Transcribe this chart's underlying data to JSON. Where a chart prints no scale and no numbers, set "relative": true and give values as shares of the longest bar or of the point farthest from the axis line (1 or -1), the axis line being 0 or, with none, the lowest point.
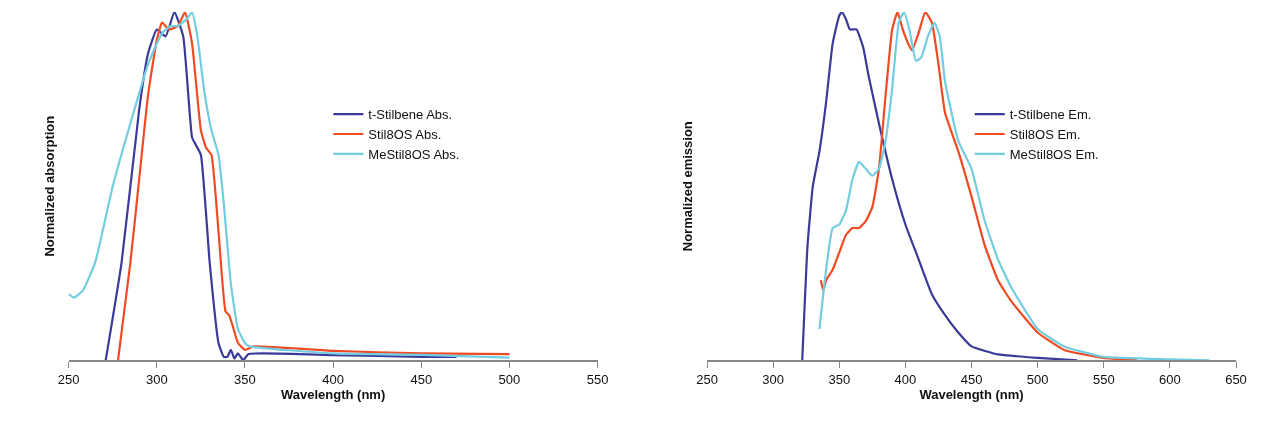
{
  "chart_data": [
    {
      "type": "line",
      "relative": true,
      "xlabel": "Wavelength (nm)",
      "ylabel": "Normalized absorption",
      "xlim": [
        250,
        550
      ],
      "xticks": [
        250,
        300,
        350,
        400,
        450,
        500,
        550
      ],
      "legend": "top right",
      "marker": "none",
      "line_style": "solid",
      "tick_labels": "x",
      "series": [
        {
          "name": "t-Stilbene Abs.",
          "color": "#3a3a9a",
          "x": [
            271,
            280,
            290,
            295,
            300,
            305,
            310,
            315,
            320,
            322,
            325,
            330,
            335,
            338,
            340,
            342,
            344,
            346,
            349,
            352,
            400,
            450,
            470
          ],
          "values": [
            0,
            0.28,
            0.72,
            0.88,
            0.95,
            0.93,
            1.0,
            0.93,
            0.64,
            0.62,
            0.59,
            0.28,
            0.05,
            0.01,
            0.01,
            0.03,
            0.005,
            0.02,
            0,
            0.018,
            0.015,
            0.01,
            0.01
          ]
        },
        {
          "name": "Stil8OS Abs.",
          "color": "#f04a22",
          "x": [
            278,
            285,
            290,
            295,
            300,
            303,
            307,
            312,
            316,
            320,
            325,
            328,
            331,
            335,
            339,
            341,
            343,
            346,
            350,
            355,
            400,
            450,
            500
          ],
          "values": [
            0,
            0.28,
            0.52,
            0.76,
            0.92,
            0.97,
            0.95,
            0.96,
            1.0,
            0.91,
            0.66,
            0.61,
            0.59,
            0.37,
            0.14,
            0.13,
            0.1,
            0.05,
            0.03,
            0.04,
            0.027,
            0.02,
            0.018
          ]
        },
        {
          "name": "MeStil8OS Abs.",
          "color": "#72cde0",
          "x": [
            250,
            253,
            258,
            265,
            275,
            285,
            295,
            303,
            308,
            312,
            317,
            320,
            323,
            327,
            331,
            335,
            338,
            342,
            346,
            350,
            353,
            400,
            450,
            500
          ],
          "values": [
            0.19,
            0.18,
            0.2,
            0.28,
            0.5,
            0.68,
            0.85,
            0.94,
            0.96,
            0.96,
            0.98,
            1.0,
            0.93,
            0.77,
            0.66,
            0.59,
            0.45,
            0.22,
            0.09,
            0.05,
            0.04,
            0.02,
            0.016,
            0.008
          ]
        }
      ]
    },
    {
      "type": "line",
      "relative": true,
      "xlabel": "Wavelength (nm)",
      "ylabel": "Normalized emission",
      "xlim": [
        250,
        650
      ],
      "xticks": [
        250,
        300,
        350,
        400,
        450,
        500,
        550,
        600,
        650
      ],
      "legend": "top right",
      "marker": "none",
      "line_style": "solid",
      "tick_labels": "x",
      "series": [
        {
          "name": "t-Stilbene Em.",
          "color": "#3a3a9a",
          "x": [
            322,
            326,
            330,
            335,
            340,
            345,
            350,
            352,
            355,
            358,
            363,
            368,
            372,
            380,
            390,
            400,
            410,
            420,
            430,
            440,
            450,
            470,
            500,
            530
          ],
          "values": [
            0,
            0.33,
            0.5,
            0.6,
            0.74,
            0.91,
            0.99,
            1.0,
            0.98,
            0.95,
            0.95,
            0.9,
            0.82,
            0.68,
            0.52,
            0.39,
            0.29,
            0.19,
            0.13,
            0.08,
            0.04,
            0.017,
            0.007,
            0
          ]
        },
        {
          "name": "Stil8OS Em.",
          "color": "#f04a22",
          "x": [
            336,
            338,
            340,
            345,
            350,
            355,
            360,
            365,
            370,
            375,
            380,
            385,
            390,
            394,
            398,
            402,
            405,
            410,
            415,
            420,
            425,
            430,
            440,
            450,
            460,
            470,
            480,
            500,
            520,
            550,
            575
          ],
          "values": [
            0.23,
            0.2,
            0.23,
            0.26,
            0.31,
            0.36,
            0.38,
            0.38,
            0.4,
            0.44,
            0.55,
            0.76,
            0.95,
            1.0,
            0.95,
            0.91,
            0.89,
            0.94,
            1.0,
            0.97,
            0.85,
            0.71,
            0.6,
            0.47,
            0.33,
            0.23,
            0.17,
            0.08,
            0.03,
            0.007,
            0
          ]
        },
        {
          "name": "MeStil8OS Em.",
          "color": "#72cde0",
          "x": [
            335,
            340,
            345,
            350,
            355,
            360,
            365,
            370,
            375,
            380,
            385,
            390,
            395,
            399,
            403,
            408,
            412,
            417,
            422,
            426,
            430,
            440,
            450,
            460,
            470,
            480,
            500,
            520,
            550,
            600,
            630
          ],
          "values": [
            0.09,
            0.26,
            0.38,
            0.39,
            0.43,
            0.52,
            0.57,
            0.55,
            0.53,
            0.55,
            0.63,
            0.78,
            0.97,
            1.0,
            0.95,
            0.86,
            0.87,
            0.93,
            0.97,
            0.93,
            0.8,
            0.63,
            0.55,
            0.4,
            0.29,
            0.21,
            0.09,
            0.04,
            0.01,
            0.003,
            0
          ]
        }
      ]
    }
  ]
}
